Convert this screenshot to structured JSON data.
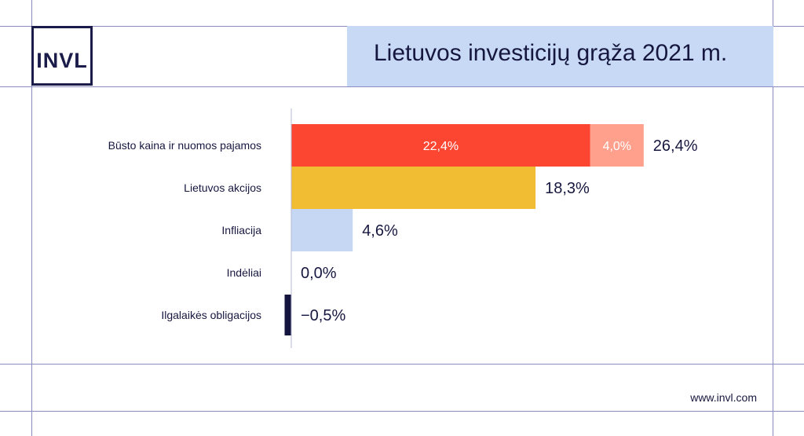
{
  "brand": {
    "logo_text": "INVL",
    "website": "www.invl.com"
  },
  "header": {
    "title": "Lietuvos investicijų grąža 2021 m."
  },
  "chart_data": {
    "type": "bar",
    "orientation": "horizontal",
    "stacked": true,
    "title": "Lietuvos investicijų grąža 2021 m.",
    "categories": [
      "Būsto kaina ir nuomos pajamos",
      "Lietuvos akcijos",
      "Infliacija",
      "Indėliai",
      "Ilgalaikės obligacijos"
    ],
    "series": [
      {
        "values": [
          22.4,
          18.3,
          4.6,
          0.0,
          -0.5
        ],
        "labels": [
          "22,4%",
          "",
          "",
          "",
          ""
        ]
      },
      {
        "values": [
          4.0,
          0,
          0,
          0,
          0
        ],
        "labels": [
          "4,0%",
          "",
          "",
          "",
          ""
        ]
      }
    ],
    "totals": [
      26.4,
      18.3,
      4.6,
      0.0,
      -0.5
    ],
    "total_labels": [
      "26,4%",
      "18,3%",
      "4,6%",
      "0,0%",
      "−0,5%"
    ],
    "bar_colors": [
      [
        "#fc4631",
        "#fea08c"
      ],
      [
        "#f0bd33"
      ],
      [
        "#c5d7f3"
      ],
      [
        "#c5d7f3"
      ],
      [
        "#14153f"
      ]
    ],
    "xlim": [
      -0.5,
      26.4
    ],
    "grid": false,
    "legend": "none"
  }
}
